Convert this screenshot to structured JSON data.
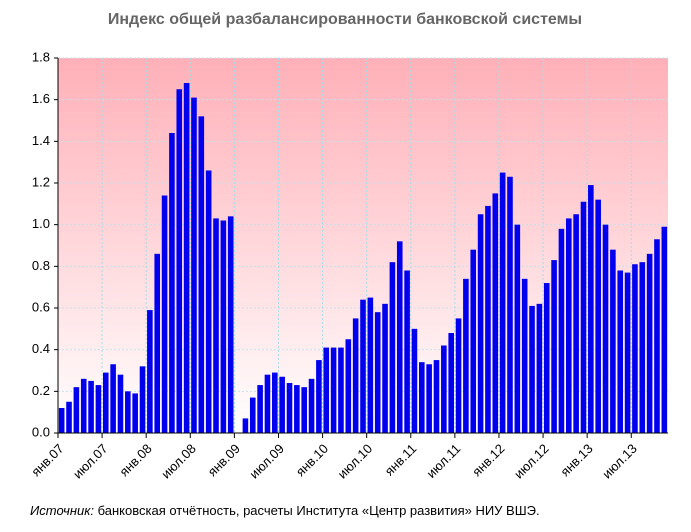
{
  "chart_data": {
    "type": "bar",
    "title": "Индекс общей разбалансированности банковской системы",
    "source_label": "Источник:",
    "source_text": "банковская отчётность, расчеты Института «Центр развития» НИУ ВШЭ.",
    "categories": [
      "янв.07",
      null,
      null,
      null,
      null,
      null,
      "июл.07",
      null,
      null,
      null,
      null,
      null,
      "янв.08",
      null,
      null,
      null,
      null,
      null,
      "июл.08",
      null,
      null,
      null,
      null,
      null,
      "янв.09",
      null,
      null,
      null,
      null,
      null,
      "июл.09",
      null,
      null,
      null,
      null,
      null,
      "янв.10",
      null,
      null,
      null,
      null,
      null,
      "июл.10",
      null,
      null,
      null,
      null,
      null,
      "янв.11",
      null,
      null,
      null,
      null,
      null,
      "июл.11",
      null,
      null,
      null,
      null,
      null,
      "янв.12",
      null,
      null,
      null,
      null,
      null,
      "июл.12",
      null,
      null,
      null,
      null,
      null,
      "янв.13",
      null,
      null,
      null,
      null,
      null,
      "июл.13",
      null,
      null,
      null,
      null
    ],
    "values": [
      0.12,
      0.15,
      0.22,
      0.26,
      0.25,
      0.23,
      0.29,
      0.33,
      0.28,
      0.2,
      0.19,
      0.32,
      0.59,
      0.86,
      1.14,
      1.44,
      1.65,
      1.68,
      1.61,
      1.52,
      1.26,
      1.03,
      1.02,
      1.04,
      null,
      0.07,
      0.17,
      0.23,
      0.28,
      0.29,
      0.27,
      0.24,
      0.23,
      0.22,
      0.26,
      0.35,
      0.41,
      0.41,
      0.41,
      0.45,
      0.55,
      0.64,
      0.65,
      0.58,
      0.62,
      0.82,
      0.92,
      0.78,
      0.5,
      0.34,
      0.33,
      0.35,
      0.42,
      0.48,
      0.55,
      0.74,
      0.88,
      1.05,
      1.09,
      1.15,
      1.25,
      1.23,
      1.0,
      0.74,
      0.61,
      0.62,
      0.72,
      0.83,
      0.98,
      1.03,
      1.05,
      1.11,
      1.19,
      1.12,
      1.0,
      0.88,
      0.78,
      0.77,
      0.81,
      0.82,
      0.86,
      0.93,
      0.99
    ],
    "color": "#0000ee",
    "ylim": [
      0,
      1.8
    ],
    "yticks": [
      {
        "value": 0,
        "label": "0.0"
      },
      0.2,
      0.4,
      0.6,
      0.8,
      {
        "value": 1,
        "label": "1.0"
      },
      1.2,
      1.4,
      1.6,
      1.8
    ],
    "grid": true
  }
}
